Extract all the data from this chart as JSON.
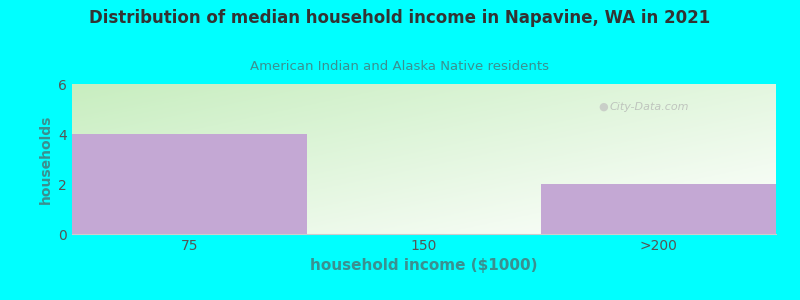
{
  "title": "Distribution of median household income in Napavine, WA in 2021",
  "subtitle": "American Indian and Alaska Native residents",
  "xlabel": "household income ($1000)",
  "ylabel": "households",
  "categories": [
    "75",
    "150",
    ">200"
  ],
  "values": [
    4,
    0,
    2
  ],
  "bar_color": "#C4A8D4",
  "background_color": "#00FFFF",
  "plot_bg_top": "#C8EEC0",
  "plot_bg_bottom": "#FFFFFF",
  "title_color": "#333333",
  "subtitle_color": "#3A9090",
  "ylabel_color": "#3A9090",
  "xlabel_color": "#3A9090",
  "tick_color": "#555555",
  "ylim": [
    0,
    6
  ],
  "yticks": [
    0,
    2,
    4,
    6
  ],
  "watermark": "City-Data.com",
  "bar_width": 1.0
}
